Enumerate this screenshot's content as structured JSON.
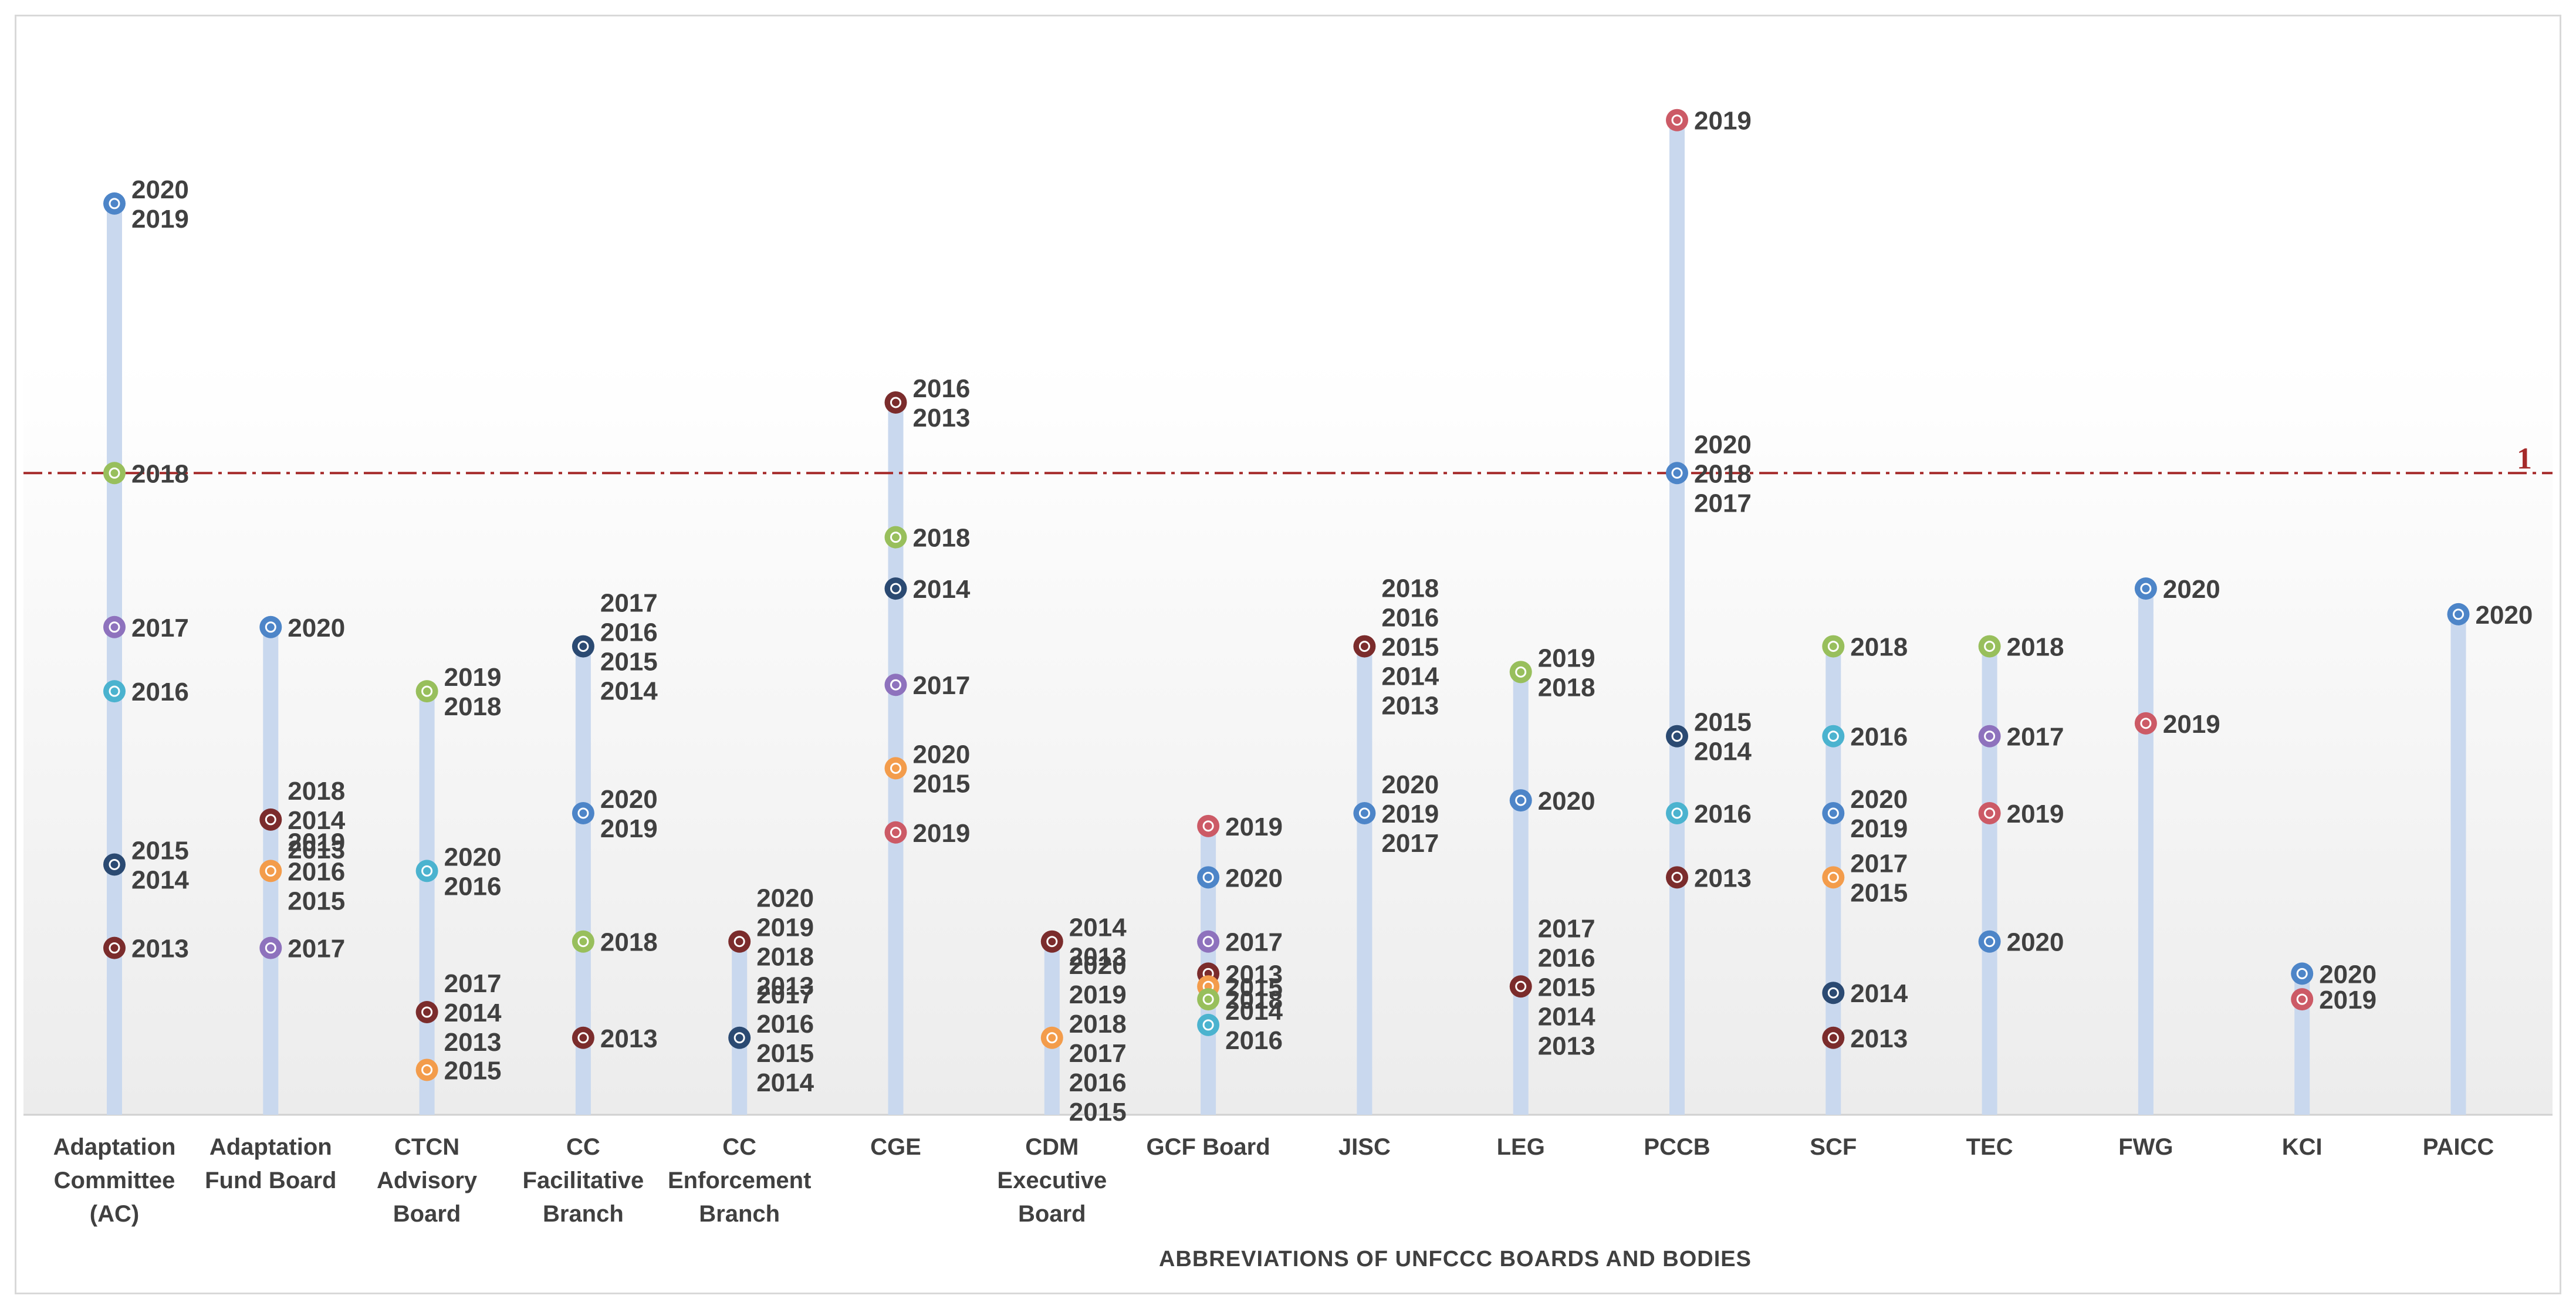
{
  "chart_data": {
    "type": "scatter",
    "title": "",
    "xlabel": "ABBREVIATIONS OF UNFCCC BOARDS AND BODIES",
    "ylabel": "",
    "ylim": [
      0,
      1.6
    ],
    "grid": false,
    "reference_line": {
      "value": 1,
      "label": "1",
      "color": "#a52a2a"
    },
    "year_colors": {
      "2013": "#7b2c2c",
      "2014": "#2b4a72",
      "2015": "#f39c4b",
      "2016": "#4bb3cf",
      "2017": "#8e72bd",
      "2018": "#98bf5c",
      "2019": "#cc5a66",
      "2020": "#4d85c8"
    },
    "categories": [
      {
        "id": "ac",
        "lines": [
          "Adaptation",
          "Committee",
          "(AC)"
        ],
        "points": [
          {
            "value": 1.42,
            "labels": [
              "2020",
              "2019"
            ],
            "color_year": "2020"
          },
          {
            "value": 1.0,
            "labels": [
              "2018"
            ],
            "color_year": "2018"
          },
          {
            "value": 0.76,
            "labels": [
              "2017"
            ],
            "color_year": "2017"
          },
          {
            "value": 0.66,
            "labels": [
              "2016"
            ],
            "color_year": "2016"
          },
          {
            "value": 0.39,
            "labels": [
              "2015",
              "2014"
            ],
            "color_year": "2014"
          },
          {
            "value": 0.26,
            "labels": [
              "2013"
            ],
            "color_year": "2013"
          }
        ]
      },
      {
        "id": "afb",
        "lines": [
          "Adaptation",
          "Fund Board"
        ],
        "points": [
          {
            "value": 0.76,
            "labels": [
              "2020"
            ],
            "color_year": "2020"
          },
          {
            "value": 0.46,
            "labels": [
              "2018",
              "2014",
              "2013"
            ],
            "color_year": "2013"
          },
          {
            "value": 0.38,
            "labels": [
              "2019",
              "2016",
              "2015"
            ],
            "color_year": "2015"
          },
          {
            "value": 0.26,
            "labels": [
              "2017"
            ],
            "color_year": "2017"
          }
        ]
      },
      {
        "id": "ctcn",
        "lines": [
          "CTCN",
          "Advisory",
          "Board"
        ],
        "points": [
          {
            "value": 0.66,
            "labels": [
              "2019",
              "2018"
            ],
            "color_year": "2018"
          },
          {
            "value": 0.38,
            "labels": [
              "2020",
              "2016"
            ],
            "color_year": "2016"
          },
          {
            "value": 0.16,
            "labels": [
              "2017",
              "2014",
              "2013"
            ],
            "color_year": "2013"
          },
          {
            "value": 0.07,
            "labels": [
              "2015"
            ],
            "color_year": "2015"
          }
        ]
      },
      {
        "id": "ccfb",
        "lines": [
          "CC",
          "Facilitative",
          "Branch"
        ],
        "points": [
          {
            "value": 0.73,
            "labels": [
              "2017",
              "2016",
              "2015",
              "2014"
            ],
            "color_year": "2014"
          },
          {
            "value": 0.47,
            "labels": [
              "2020",
              "2019"
            ],
            "color_year": "2020"
          },
          {
            "value": 0.27,
            "labels": [
              "2018"
            ],
            "color_year": "2018"
          },
          {
            "value": 0.12,
            "labels": [
              "2013"
            ],
            "color_year": "2013"
          }
        ]
      },
      {
        "id": "cceb",
        "lines": [
          "CC",
          "Enforcement",
          "Branch"
        ],
        "points": [
          {
            "value": 0.27,
            "labels": [
              "2020",
              "2019",
              "2018",
              "2013"
            ],
            "color_year": "2013"
          },
          {
            "value": 0.12,
            "labels": [
              "2017",
              "2016",
              "2015",
              "2014"
            ],
            "color_year": "2014"
          }
        ]
      },
      {
        "id": "cge",
        "lines": [
          "CGE"
        ],
        "points": [
          {
            "value": 1.11,
            "labels": [
              "2016",
              "2013"
            ],
            "color_year": "2013"
          },
          {
            "value": 0.9,
            "labels": [
              "2018"
            ],
            "color_year": "2018"
          },
          {
            "value": 0.82,
            "labels": [
              "2014"
            ],
            "color_year": "2014"
          },
          {
            "value": 0.67,
            "labels": [
              "2017"
            ],
            "color_year": "2017"
          },
          {
            "value": 0.54,
            "labels": [
              "2020",
              "2015"
            ],
            "color_year": "2015"
          },
          {
            "value": 0.44,
            "labels": [
              "2019"
            ],
            "color_year": "2019"
          }
        ]
      },
      {
        "id": "cdm",
        "lines": [
          "CDM",
          "Executive",
          "Board"
        ],
        "points": [
          {
            "value": 0.27,
            "labels": [
              "2014",
              "2013"
            ],
            "color_year": "2013"
          },
          {
            "value": 0.12,
            "labels": [
              "2020",
              "2019",
              "2018",
              "2017",
              "2016",
              "2015"
            ],
            "color_year": "2015"
          }
        ]
      },
      {
        "id": "gcf",
        "lines": [
          "GCF  Board"
        ],
        "points": [
          {
            "value": 0.45,
            "labels": [
              "2019"
            ],
            "color_year": "2019"
          },
          {
            "value": 0.37,
            "labels": [
              "2020"
            ],
            "color_year": "2020"
          },
          {
            "value": 0.27,
            "labels": [
              "2017"
            ],
            "color_year": "2017"
          },
          {
            "value": 0.22,
            "labels": [
              "2013"
            ],
            "color_year": "2013"
          },
          {
            "value": 0.2,
            "labels": [
              "2015"
            ],
            "color_year": "2015"
          },
          {
            "value": 0.18,
            "labels": [
              "2018"
            ],
            "color_year": "2018"
          },
          {
            "value": 0.14,
            "labels": [
              "2014",
              "2016"
            ],
            "color_year": "2016"
          }
        ]
      },
      {
        "id": "jisc",
        "lines": [
          "JISC"
        ],
        "points": [
          {
            "value": 0.73,
            "labels": [
              "2018",
              "2016",
              "2015",
              "2014",
              "2013"
            ],
            "color_year": "2013"
          },
          {
            "value": 0.47,
            "labels": [
              "2020",
              "2019",
              "2017"
            ],
            "color_year": "2020"
          }
        ]
      },
      {
        "id": "leg",
        "lines": [
          "LEG"
        ],
        "points": [
          {
            "value": 0.69,
            "labels": [
              "2019",
              "2018"
            ],
            "color_year": "2018"
          },
          {
            "value": 0.49,
            "labels": [
              "2020"
            ],
            "color_year": "2020"
          },
          {
            "value": 0.2,
            "labels": [
              "2017",
              "2016",
              "2015",
              "2014",
              "2013"
            ],
            "color_year": "2013"
          }
        ]
      },
      {
        "id": "pccb",
        "lines": [
          "PCCB"
        ],
        "points": [
          {
            "value": 1.55,
            "labels": [
              "2019"
            ],
            "color_year": "2019"
          },
          {
            "value": 1.0,
            "labels": [
              "2020",
              "2018",
              "2017"
            ],
            "color_year": "2020"
          },
          {
            "value": 0.59,
            "labels": [
              "2015",
              "2014"
            ],
            "color_year": "2014"
          },
          {
            "value": 0.47,
            "labels": [
              "2016"
            ],
            "color_year": "2016"
          },
          {
            "value": 0.37,
            "labels": [
              "2013"
            ],
            "color_year": "2013"
          }
        ]
      },
      {
        "id": "scf",
        "lines": [
          "SCF"
        ],
        "points": [
          {
            "value": 0.73,
            "labels": [
              "2018"
            ],
            "color_year": "2018"
          },
          {
            "value": 0.59,
            "labels": [
              "2016"
            ],
            "color_year": "2016"
          },
          {
            "value": 0.47,
            "labels": [
              "2020",
              "2019"
            ],
            "color_year": "2020"
          },
          {
            "value": 0.37,
            "labels": [
              "2017",
              "2015"
            ],
            "color_year": "2015"
          },
          {
            "value": 0.19,
            "labels": [
              "2014"
            ],
            "color_year": "2014"
          },
          {
            "value": 0.12,
            "labels": [
              "2013"
            ],
            "color_year": "2013"
          }
        ]
      },
      {
        "id": "tec",
        "lines": [
          "TEC"
        ],
        "points": [
          {
            "value": 0.73,
            "labels": [
              "2018"
            ],
            "color_year": "2018"
          },
          {
            "value": 0.59,
            "labels": [
              "2017"
            ],
            "color_year": "2017"
          },
          {
            "value": 0.47,
            "labels": [
              "2019"
            ],
            "color_year": "2019"
          },
          {
            "value": 0.27,
            "labels": [
              "2020"
            ],
            "color_year": "2020"
          }
        ]
      },
      {
        "id": "fwg",
        "lines": [
          "FWG"
        ],
        "points": [
          {
            "value": 0.82,
            "labels": [
              "2020"
            ],
            "color_year": "2020"
          },
          {
            "value": 0.61,
            "labels": [
              "2019"
            ],
            "color_year": "2019"
          }
        ]
      },
      {
        "id": "kci",
        "lines": [
          "KCI"
        ],
        "points": [
          {
            "value": 0.22,
            "labels": [
              "2020"
            ],
            "color_year": "2020"
          },
          {
            "value": 0.18,
            "labels": [
              "2019"
            ],
            "color_year": "2019"
          }
        ]
      },
      {
        "id": "paicc",
        "lines": [
          "PAICC"
        ],
        "points": [
          {
            "value": 0.78,
            "labels": [
              "2020"
            ],
            "color_year": "2020"
          }
        ]
      }
    ]
  }
}
